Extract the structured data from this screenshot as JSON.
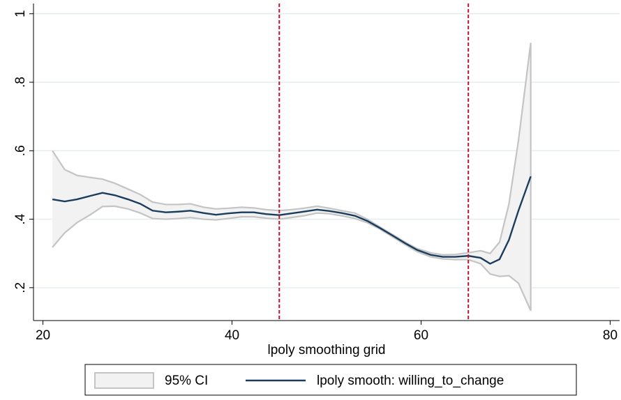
{
  "chart_data": {
    "type": "line",
    "x_label": "lpoly smoothing grid",
    "x": [
      21,
      22.3,
      23.6,
      25,
      26.3,
      27.6,
      29,
      30.3,
      31.6,
      33,
      34.3,
      35.6,
      37,
      38.3,
      39.6,
      41,
      42.3,
      43.6,
      45,
      46.3,
      47.6,
      49,
      50.3,
      51.6,
      53,
      54.3,
      55.6,
      57,
      58.3,
      59.6,
      61,
      62.3,
      63.6,
      65,
      66.3,
      67.3,
      68.3,
      69.3,
      70.3,
      71.6
    ],
    "series": [
      {
        "name": "95% CI",
        "color": "#f2f2f2",
        "edge_color": "#c4c4c4",
        "upper": [
          0.6,
          0.545,
          0.528,
          0.522,
          0.517,
          0.505,
          0.488,
          0.472,
          0.45,
          0.443,
          0.443,
          0.445,
          0.435,
          0.43,
          0.432,
          0.435,
          0.433,
          0.428,
          0.425,
          0.428,
          0.432,
          0.438,
          0.432,
          0.425,
          0.418,
          0.4,
          0.378,
          0.355,
          0.333,
          0.314,
          0.302,
          0.296,
          0.297,
          0.302,
          0.308,
          0.3,
          0.333,
          0.445,
          0.63,
          0.915
        ],
        "lower": [
          0.318,
          0.36,
          0.39,
          0.413,
          0.437,
          0.438,
          0.43,
          0.418,
          0.402,
          0.4,
          0.402,
          0.405,
          0.4,
          0.398,
          0.402,
          0.407,
          0.407,
          0.403,
          0.4,
          0.405,
          0.41,
          0.418,
          0.416,
          0.41,
          0.402,
          0.39,
          0.372,
          0.348,
          0.326,
          0.305,
          0.29,
          0.284,
          0.282,
          0.282,
          0.27,
          0.24,
          0.233,
          0.235,
          0.213,
          0.133
        ]
      },
      {
        "name": "lpoly smooth: willing_to_change",
        "color": "#1a3d5e",
        "values": [
          0.458,
          0.452,
          0.458,
          0.468,
          0.477,
          0.47,
          0.458,
          0.445,
          0.425,
          0.42,
          0.422,
          0.425,
          0.418,
          0.413,
          0.417,
          0.42,
          0.42,
          0.415,
          0.412,
          0.417,
          0.422,
          0.428,
          0.424,
          0.418,
          0.41,
          0.395,
          0.375,
          0.352,
          0.33,
          0.31,
          0.296,
          0.29,
          0.29,
          0.293,
          0.287,
          0.27,
          0.283,
          0.34,
          0.425,
          0.525
        ]
      }
    ],
    "vlines": [
      45,
      65
    ],
    "vline_color": "#c8102e",
    "xlim": [
      19,
      81
    ],
    "xticks": [
      20,
      40,
      60,
      80
    ],
    "ylim": [
      0.104,
      1.03
    ],
    "yticks": [
      {
        "value": 0.2,
        "label": ".2"
      },
      {
        "value": 0.4,
        "label": ".4"
      },
      {
        "value": 0.6,
        "label": ".6"
      },
      {
        "value": 0.8,
        "label": ".8"
      },
      1
    ],
    "grid": true,
    "grid_color": "#e6edf1",
    "legend": "bottom"
  }
}
